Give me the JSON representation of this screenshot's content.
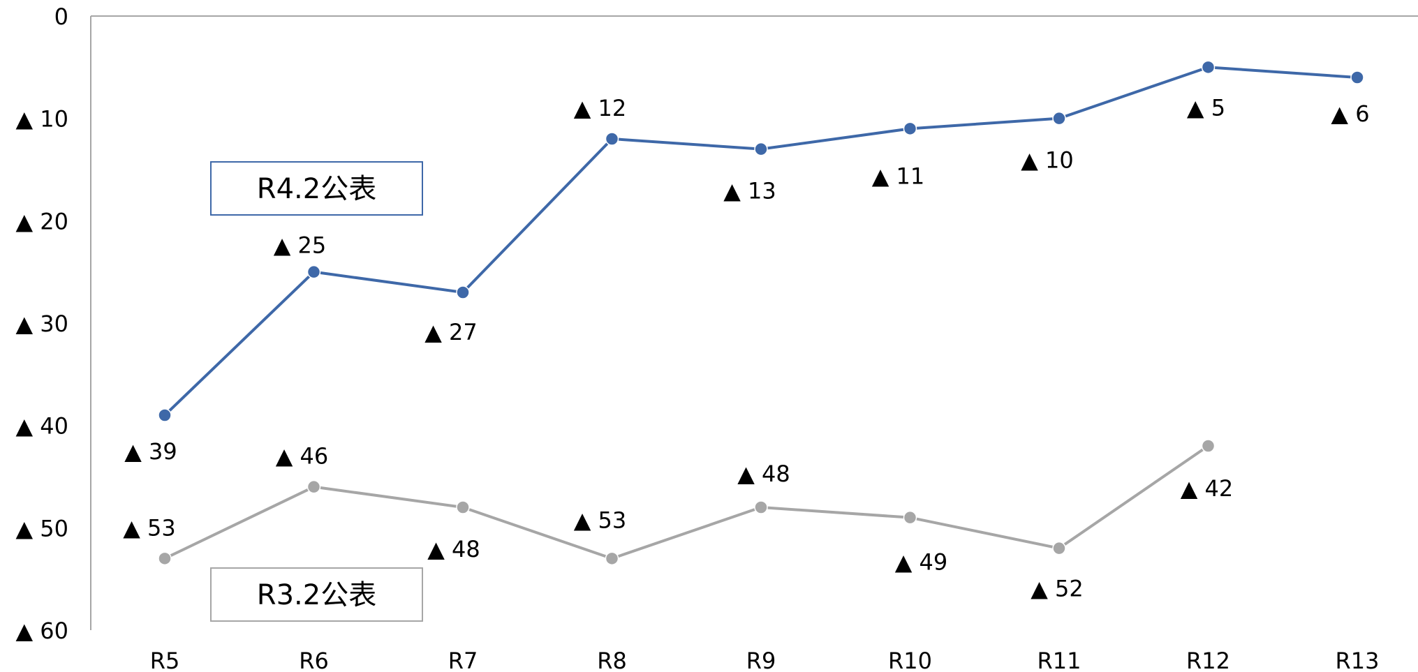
{
  "chart_data": {
    "type": "line",
    "categories": [
      "R5",
      "R6",
      "R7",
      "R8",
      "R9",
      "R10",
      "R11",
      "R12",
      "R13"
    ],
    "y_axis": {
      "ylim": [
        -60,
        0
      ],
      "ticks": [
        0,
        -10,
        -20,
        -30,
        -40,
        -50,
        -60
      ],
      "tick_labels": [
        "0",
        "▲ 10",
        "▲ 20",
        "▲ 30",
        "▲ 40",
        "▲ 50",
        "▲ 60"
      ],
      "grid": false
    },
    "series": [
      {
        "name": "R4.2公表",
        "color": "#3E68A8",
        "values": [
          -39,
          -25,
          -27,
          -12,
          -13,
          -11,
          -10,
          -5,
          -6
        ],
        "labels": [
          "▲ 39",
          "▲ 25",
          "▲ 27",
          "▲ 12",
          "▲ 13",
          "▲ 11",
          "▲ 10",
          "▲ 5",
          "▲ 6"
        ]
      },
      {
        "name": "R3.2公表",
        "color": "#A6A6A6",
        "values": [
          -53,
          -46,
          -48,
          -53,
          -48,
          -49,
          -52,
          -42,
          null
        ],
        "labels": [
          "▲ 53",
          "▲ 46",
          "▲ 48",
          "▲ 53",
          "▲ 48",
          "▲ 49",
          "▲ 52",
          "▲ 42",
          null
        ]
      }
    ],
    "legend": "boxed labels next to each series"
  }
}
